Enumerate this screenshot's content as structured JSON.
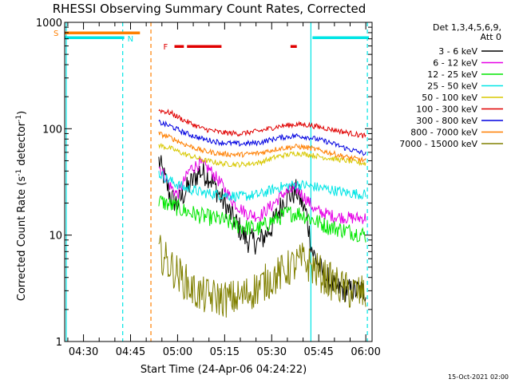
{
  "chart_data": {
    "type": "line",
    "title": "RHESSI Observing Summary Count Rates, Corrected",
    "xlabel": "Start Time (24-Apr-06 04:24:22)",
    "ylabel": "Corrected Count Rate (s",
    "ylabel_sup1": "-1",
    "ylabel_mid": " detector",
    "ylabel_sup2": "-1",
    "ylabel_end": ")",
    "y_scale": "log",
    "ylim": [
      1,
      1000
    ],
    "xlim_minutes": [
      "04:24",
      "06:02"
    ],
    "x_ticks": [
      "04:30",
      "04:45",
      "05:00",
      "05:15",
      "05:30",
      "05:45",
      "06:00"
    ],
    "y_ticks": [
      "1",
      "10",
      "100",
      "1000"
    ],
    "legend_title": [
      "Det 1,3,4,5,6,9,",
      "Att 0"
    ],
    "legend_position": "right",
    "timestamp": "15-Oct-2021 02:00",
    "flags": [
      {
        "label": "S",
        "color": "#ff7f00",
        "intervals": [
          [
            "04:24",
            "04:48"
          ]
        ]
      },
      {
        "label": "N",
        "color": "#00e5e5",
        "intervals": [
          [
            "04:24",
            "04:43"
          ],
          [
            "05:43",
            "06:01"
          ]
        ]
      },
      {
        "label": "F",
        "color": "#e00000",
        "intervals": [
          [
            "04:59",
            "05:02"
          ],
          [
            "05:03",
            "05:14"
          ],
          [
            "05:36",
            "05:38"
          ]
        ]
      }
    ],
    "vlines": [
      {
        "time": "04:24.5",
        "color": "#00e5e5",
        "style": "solid"
      },
      {
        "time": "04:42.5",
        "color": "#00e5e5",
        "style": "dashed"
      },
      {
        "time": "04:51.5",
        "color": "#ff7f00",
        "style": "dashed"
      },
      {
        "time": "05:42.5",
        "color": "#00e5e5",
        "style": "solid"
      },
      {
        "time": "06:00.5",
        "color": "#00e5e5",
        "style": "dashed"
      }
    ],
    "series": [
      {
        "name": "3 - 6 keV",
        "color": "#000000",
        "noise": 0.12,
        "points": [
          [
            "04:54",
            50
          ],
          [
            "04:58",
            22
          ],
          [
            "05:00",
            20
          ],
          [
            "05:04",
            30
          ],
          [
            "05:07",
            40
          ],
          [
            "05:10",
            36
          ],
          [
            "05:14",
            22
          ],
          [
            "05:18",
            14
          ],
          [
            "05:22",
            9
          ],
          [
            "05:26",
            8.5
          ],
          [
            "05:30",
            12
          ],
          [
            "05:34",
            22
          ],
          [
            "05:38",
            26
          ],
          [
            "05:41",
            16
          ],
          [
            "05:43",
            7
          ],
          [
            "05:46",
            4.5
          ],
          [
            "05:50",
            3.2
          ],
          [
            "05:55",
            3.0
          ],
          [
            "06:00",
            3.0
          ]
        ]
      },
      {
        "name": "6 - 12 keV",
        "color": "#e600e6",
        "noise": 0.06,
        "points": [
          [
            "04:54",
            45
          ],
          [
            "04:58",
            28
          ],
          [
            "05:00",
            24
          ],
          [
            "05:04",
            42
          ],
          [
            "05:07",
            47
          ],
          [
            "05:10",
            42
          ],
          [
            "05:14",
            30
          ],
          [
            "05:18",
            20
          ],
          [
            "05:22",
            16
          ],
          [
            "05:26",
            15
          ],
          [
            "05:30",
            19
          ],
          [
            "05:34",
            25
          ],
          [
            "05:38",
            27
          ],
          [
            "05:41",
            22
          ],
          [
            "05:44",
            17
          ],
          [
            "05:50",
            15
          ],
          [
            "05:55",
            14.5
          ],
          [
            "06:00",
            14.5
          ]
        ]
      },
      {
        "name": "12 - 25 keV",
        "color": "#00e600",
        "noise": 0.08,
        "points": [
          [
            "04:54",
            21
          ],
          [
            "04:58",
            19
          ],
          [
            "05:02",
            17
          ],
          [
            "05:08",
            15
          ],
          [
            "05:14",
            14
          ],
          [
            "05:20",
            12
          ],
          [
            "05:26",
            11.5
          ],
          [
            "05:30",
            13.5
          ],
          [
            "05:35",
            16
          ],
          [
            "05:39",
            16
          ],
          [
            "05:43",
            14
          ],
          [
            "05:48",
            12
          ],
          [
            "05:54",
            11
          ],
          [
            "06:00",
            10
          ]
        ]
      },
      {
        "name": "25 - 50 keV",
        "color": "#00e5e5",
        "noise": 0.05,
        "points": [
          [
            "04:54",
            38
          ],
          [
            "04:58",
            32
          ],
          [
            "05:02",
            28
          ],
          [
            "05:08",
            25
          ],
          [
            "05:14",
            24
          ],
          [
            "05:20",
            23
          ],
          [
            "05:26",
            24
          ],
          [
            "05:32",
            28
          ],
          [
            "05:38",
            30
          ],
          [
            "05:42",
            29
          ],
          [
            "05:48",
            27
          ],
          [
            "05:54",
            25
          ],
          [
            "06:00",
            24
          ]
        ]
      },
      {
        "name": "50 - 100 keV",
        "color": "#d8c800",
        "noise": 0.025,
        "points": [
          [
            "04:54",
            70
          ],
          [
            "04:58",
            65
          ],
          [
            "05:02",
            58
          ],
          [
            "05:08",
            51
          ],
          [
            "05:14",
            47
          ],
          [
            "05:20",
            46
          ],
          [
            "05:26",
            48
          ],
          [
            "05:32",
            55
          ],
          [
            "05:38",
            59
          ],
          [
            "05:42",
            57
          ],
          [
            "05:48",
            53
          ],
          [
            "05:54",
            50
          ],
          [
            "06:00",
            47
          ]
        ]
      },
      {
        "name": "100 - 300 keV",
        "color": "#e00000",
        "noise": 0.025,
        "points": [
          [
            "04:54",
            150
          ],
          [
            "04:58",
            140
          ],
          [
            "05:02",
            120
          ],
          [
            "05:08",
            100
          ],
          [
            "05:14",
            92
          ],
          [
            "05:20",
            90
          ],
          [
            "05:26",
            95
          ],
          [
            "05:32",
            105
          ],
          [
            "05:38",
            110
          ],
          [
            "05:42",
            108
          ],
          [
            "05:48",
            100
          ],
          [
            "05:54",
            92
          ],
          [
            "06:00",
            85
          ]
        ]
      },
      {
        "name": "300 - 800 keV",
        "color": "#0000e0",
        "noise": 0.025,
        "points": [
          [
            "04:54",
            115
          ],
          [
            "04:58",
            105
          ],
          [
            "05:02",
            92
          ],
          [
            "05:08",
            80
          ],
          [
            "05:14",
            74
          ],
          [
            "05:20",
            72
          ],
          [
            "05:26",
            74
          ],
          [
            "05:32",
            82
          ],
          [
            "05:38",
            86
          ],
          [
            "05:42",
            83
          ],
          [
            "05:48",
            75
          ],
          [
            "05:54",
            65
          ],
          [
            "06:00",
            58
          ]
        ]
      },
      {
        "name": "800 - 7000 keV",
        "color": "#ff7f00",
        "noise": 0.025,
        "points": [
          [
            "04:54",
            90
          ],
          [
            "04:58",
            82
          ],
          [
            "05:02",
            72
          ],
          [
            "05:08",
            62
          ],
          [
            "05:14",
            58
          ],
          [
            "05:20",
            57
          ],
          [
            "05:26",
            59
          ],
          [
            "05:32",
            65
          ],
          [
            "05:38",
            68
          ],
          [
            "05:42",
            66
          ],
          [
            "05:48",
            60
          ],
          [
            "05:54",
            54
          ],
          [
            "06:00",
            50
          ]
        ]
      },
      {
        "name": "7000 - 15000 keV",
        "color": "#808000",
        "noise": 0.18,
        "points": [
          [
            "04:54",
            7
          ],
          [
            "04:58",
            5
          ],
          [
            "05:02",
            3.8
          ],
          [
            "05:05",
            3.0
          ],
          [
            "05:08",
            2.7
          ],
          [
            "05:12",
            2.6
          ],
          [
            "05:16",
            2.5
          ],
          [
            "05:20",
            2.6
          ],
          [
            "05:24",
            3.0
          ],
          [
            "05:28",
            3.6
          ],
          [
            "05:32",
            4.2
          ],
          [
            "05:36",
            5.0
          ],
          [
            "05:40",
            5.8
          ],
          [
            "05:43",
            5.0
          ],
          [
            "05:48",
            3.8
          ],
          [
            "05:54",
            3.0
          ],
          [
            "06:00",
            2.8
          ]
        ]
      }
    ]
  }
}
